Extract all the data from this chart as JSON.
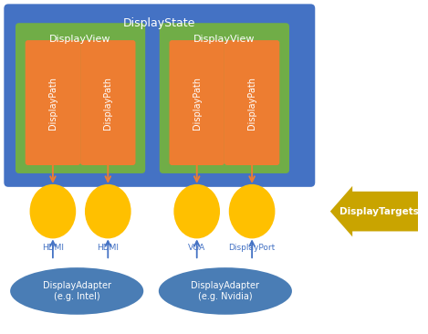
{
  "bg_color": "#ffffff",
  "display_state_color": "#4472C4",
  "display_state_label": "DisplayState",
  "display_view_color": "#70AD47",
  "display_view_label": "DisplayView",
  "display_path_color": "#ED7D31",
  "display_path_label": "DisplayPath",
  "yellow_color": "#FFC000",
  "adapter_color": "#4A7DB5",
  "arrow_color": "#ED7D31",
  "connector_arrow_color": "#4472C4",
  "display_targets_color": "#C9A400",
  "display_targets_text_color": "#ffffff",
  "display_targets_label": "DisplayTargets",
  "connector_labels_color": "#4472C4"
}
